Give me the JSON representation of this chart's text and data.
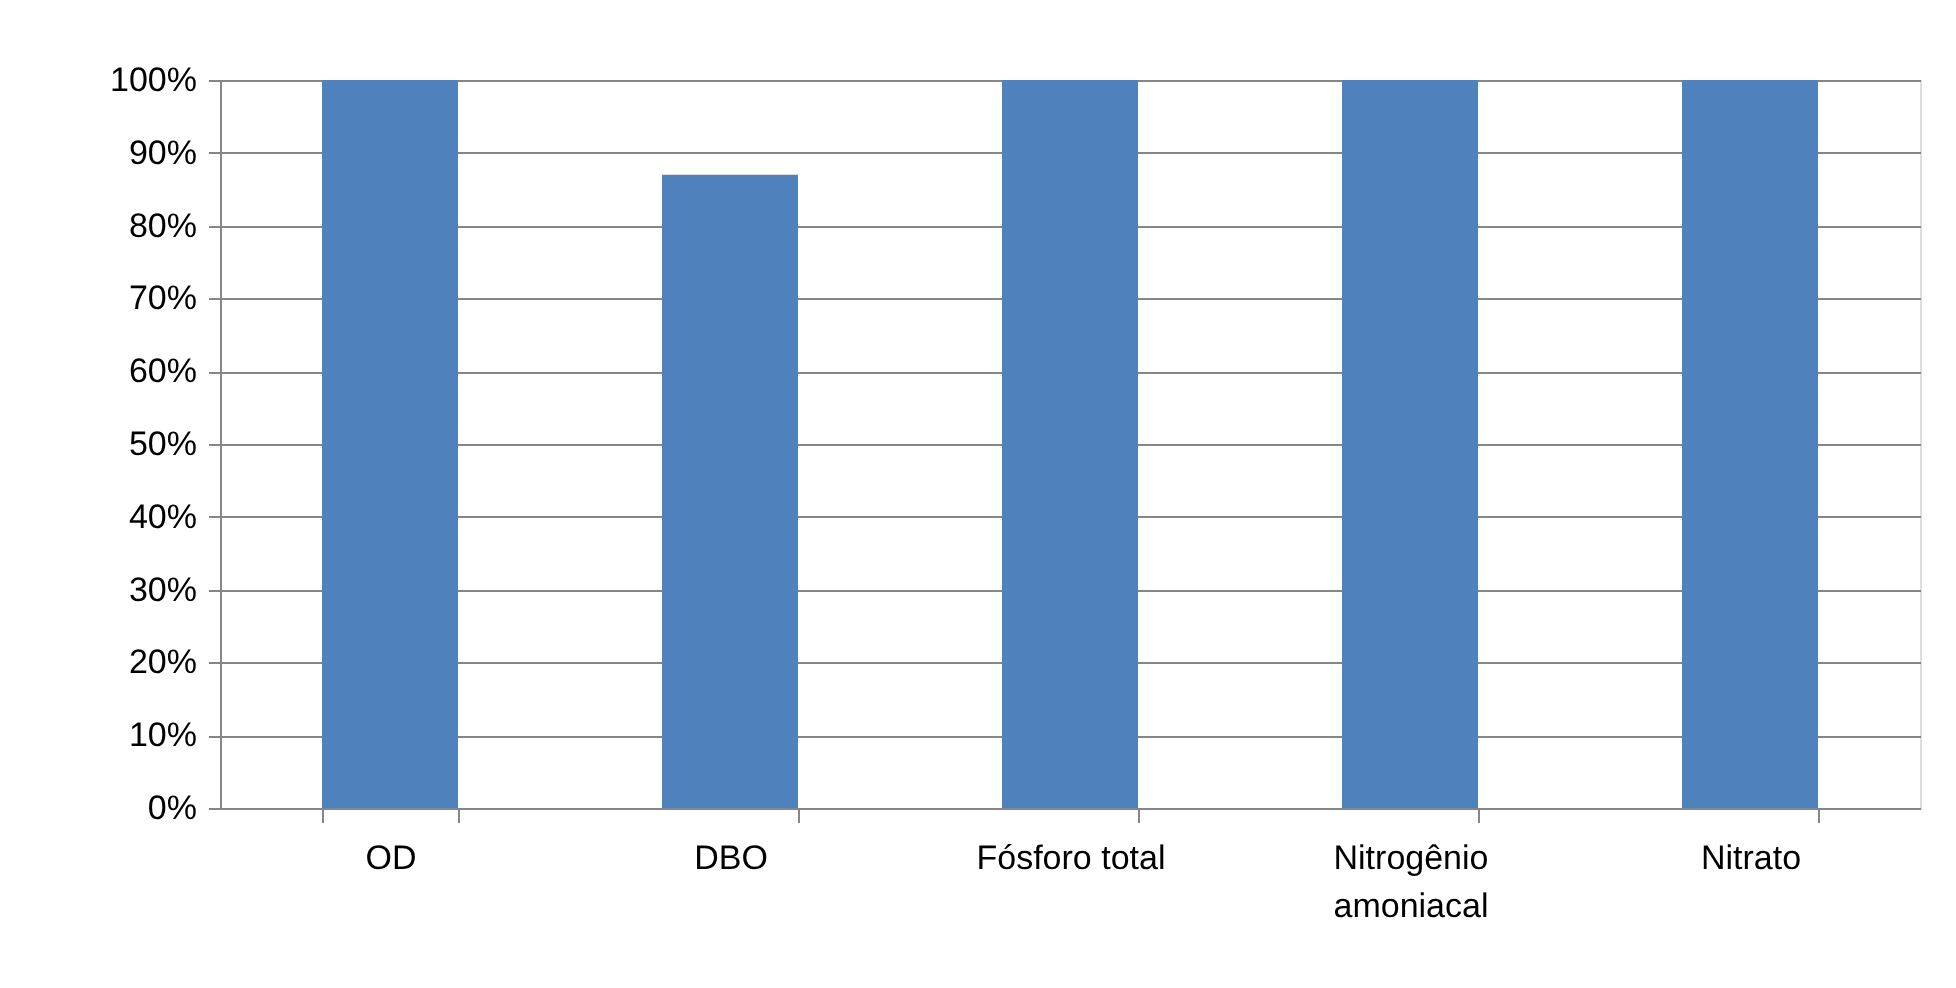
{
  "chart_data": {
    "type": "bar",
    "categories": [
      "OD",
      "DBO",
      "Fósforo total",
      "Nitrogênio amoniacal",
      "Nitrato"
    ],
    "values": [
      100,
      87,
      100,
      100,
      100
    ],
    "color": "#4f81bd",
    "ylim": [
      0,
      100
    ],
    "yticks": [
      {
        "value": 0,
        "label": "0%"
      },
      {
        "value": 10,
        "label": "10%"
      },
      {
        "value": 20,
        "label": "20%"
      },
      {
        "value": 30,
        "label": "30%"
      },
      {
        "value": 40,
        "label": "40%"
      },
      {
        "value": 50,
        "label": "50%"
      },
      {
        "value": 60,
        "label": "60%"
      },
      {
        "value": 70,
        "label": "70%"
      },
      {
        "value": 80,
        "label": "80%"
      },
      {
        "value": 90,
        "label": "90%"
      },
      {
        "value": 100,
        "label": "100%"
      }
    ],
    "grid": "y"
  }
}
